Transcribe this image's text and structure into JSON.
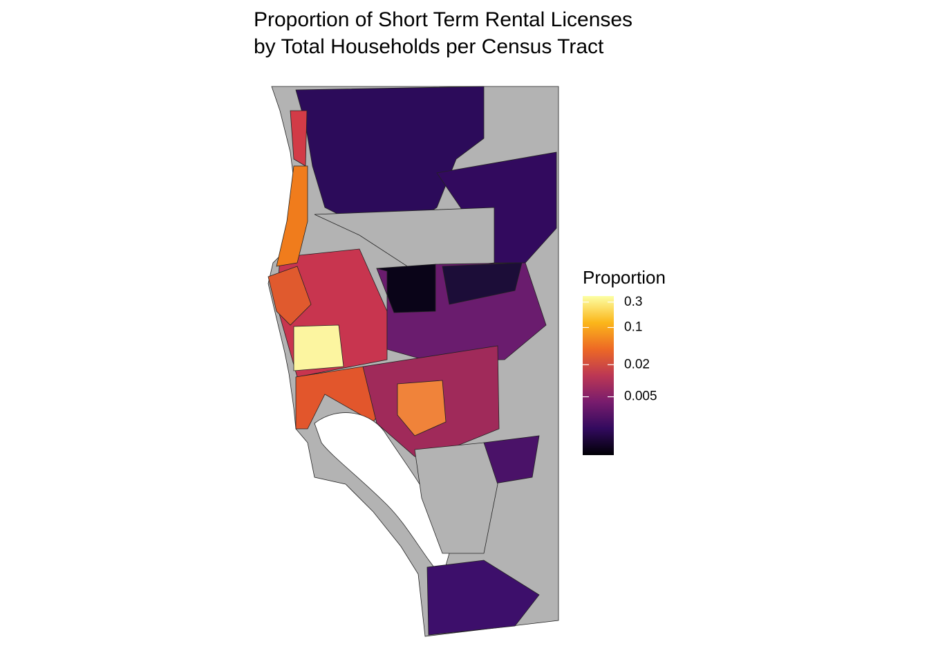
{
  "chart_data": {
    "type": "map",
    "title": [
      "Proportion of Short Term Rental Licenses",
      "by Total Households per Census Tract"
    ],
    "legend": {
      "title": "Proportion",
      "scale": "log",
      "lim": [
        0.0004,
        0.39
      ],
      "ticks": [
        0.3,
        0.1,
        0.02,
        0.005
      ],
      "colors": [
        "#000004",
        "#320a5e",
        "#781c6d",
        "#bc3754",
        "#ed6925",
        "#fbb61a",
        "#fcffa4"
      ]
    }
  }
}
